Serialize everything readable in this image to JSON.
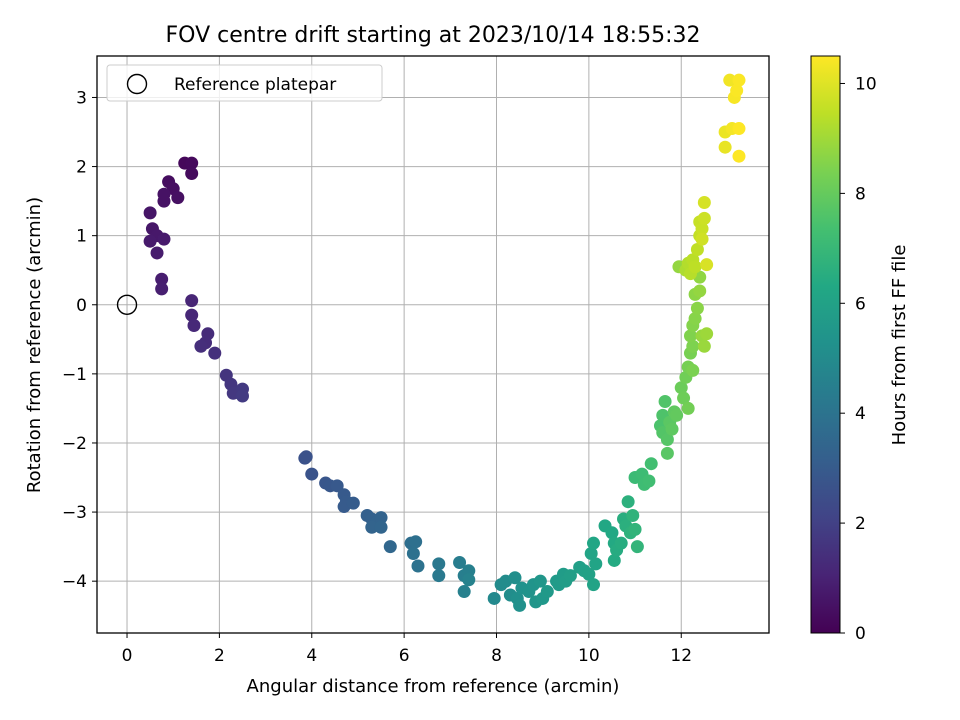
{
  "chart_data": {
    "type": "scatter",
    "title": "FOV centre drift starting at 2023/10/14 18:55:32",
    "xlabel": "Angular distance from reference (arcmin)",
    "ylabel": "Rotation from reference (arcmin)",
    "xlim": [
      -0.65,
      13.9
    ],
    "ylim": [
      -4.75,
      3.6
    ],
    "x_ticks": [
      0,
      2,
      4,
      6,
      8,
      10,
      12
    ],
    "y_ticks": [
      -4,
      -3,
      -2,
      -1,
      0,
      1,
      2,
      3
    ],
    "grid": true,
    "legend": {
      "placement": "top-left",
      "entries": [
        "Reference platepar"
      ]
    },
    "reference_point": {
      "x": 0,
      "y": 0,
      "label": "Reference platepar"
    },
    "colorbar": {
      "label": "Hours from first FF file",
      "colormap": "viridis",
      "range": [
        0,
        10.5
      ],
      "ticks": [
        0,
        2,
        4,
        6,
        8,
        10
      ]
    },
    "points": [
      [
        1.25,
        2.05,
        0.2
      ],
      [
        1.4,
        2.05,
        0.25
      ],
      [
        1.4,
        1.9,
        0.3
      ],
      [
        0.9,
        1.78,
        0.35
      ],
      [
        1.0,
        1.68,
        0.4
      ],
      [
        1.1,
        1.55,
        0.45
      ],
      [
        0.8,
        1.6,
        0.5
      ],
      [
        0.8,
        1.5,
        0.5
      ],
      [
        0.5,
        1.33,
        0.6
      ],
      [
        0.55,
        1.1,
        0.65
      ],
      [
        0.65,
        1.0,
        0.7
      ],
      [
        0.8,
        0.95,
        0.75
      ],
      [
        0.5,
        0.92,
        0.75
      ],
      [
        0.65,
        0.75,
        0.8
      ],
      [
        0.75,
        0.37,
        0.85
      ],
      [
        0.75,
        0.23,
        0.9
      ],
      [
        1.4,
        0.06,
        1.1
      ],
      [
        1.4,
        -0.15,
        1.15
      ],
      [
        1.45,
        -0.3,
        1.2
      ],
      [
        1.75,
        -0.42,
        1.3
      ],
      [
        1.7,
        -0.55,
        1.35
      ],
      [
        1.6,
        -0.6,
        1.4
      ],
      [
        1.9,
        -0.7,
        1.45
      ],
      [
        2.15,
        -1.02,
        1.6
      ],
      [
        2.25,
        -1.15,
        1.65
      ],
      [
        2.3,
        -1.28,
        1.7
      ],
      [
        2.5,
        -1.22,
        1.75
      ],
      [
        2.5,
        -1.32,
        1.8
      ],
      [
        3.85,
        -2.22,
        2.6
      ],
      [
        3.88,
        -2.2,
        2.65
      ],
      [
        4.0,
        -2.45,
        2.7
      ],
      [
        4.3,
        -2.58,
        2.8
      ],
      [
        4.4,
        -2.62,
        2.85
      ],
      [
        4.55,
        -2.62,
        2.9
      ],
      [
        4.7,
        -2.75,
        2.95
      ],
      [
        4.75,
        -2.85,
        3.0
      ],
      [
        4.7,
        -2.92,
        3.0
      ],
      [
        4.9,
        -2.87,
        3.05
      ],
      [
        5.2,
        -3.05,
        3.2
      ],
      [
        5.3,
        -3.1,
        3.25
      ],
      [
        5.4,
        -3.15,
        3.3
      ],
      [
        5.5,
        -3.08,
        3.3
      ],
      [
        5.3,
        -3.22,
        3.35
      ],
      [
        5.5,
        -3.22,
        3.4
      ],
      [
        5.7,
        -3.5,
        3.5
      ],
      [
        6.15,
        -3.45,
        3.8
      ],
      [
        6.25,
        -3.43,
        3.85
      ],
      [
        6.2,
        -3.6,
        3.9
      ],
      [
        6.3,
        -3.78,
        3.95
      ],
      [
        6.75,
        -3.75,
        4.2
      ],
      [
        6.75,
        -3.92,
        4.25
      ],
      [
        7.2,
        -3.73,
        4.4
      ],
      [
        7.3,
        -3.92,
        4.45
      ],
      [
        7.4,
        -3.85,
        4.5
      ],
      [
        7.3,
        -4.15,
        4.55
      ],
      [
        7.4,
        -3.98,
        4.6
      ],
      [
        7.95,
        -4.25,
        4.9
      ],
      [
        8.1,
        -4.05,
        5.0
      ],
      [
        8.2,
        -4.0,
        5.05
      ],
      [
        8.3,
        -4.2,
        5.1
      ],
      [
        8.4,
        -3.95,
        5.15
      ],
      [
        8.45,
        -4.25,
        5.2
      ],
      [
        8.5,
        -4.35,
        5.25
      ],
      [
        8.55,
        -4.1,
        5.3
      ],
      [
        8.7,
        -4.15,
        5.35
      ],
      [
        8.8,
        -4.05,
        5.4
      ],
      [
        8.85,
        -4.3,
        5.45
      ],
      [
        8.95,
        -4.0,
        5.5
      ],
      [
        9.0,
        -4.25,
        5.55
      ],
      [
        9.1,
        -4.15,
        5.6
      ],
      [
        9.3,
        -4.0,
        5.65
      ],
      [
        9.35,
        -4.05,
        5.7
      ],
      [
        9.45,
        -3.9,
        5.75
      ],
      [
        9.5,
        -4.0,
        5.8
      ],
      [
        9.6,
        -3.92,
        5.85
      ],
      [
        9.8,
        -3.8,
        5.9
      ],
      [
        9.9,
        -3.85,
        5.95
      ],
      [
        10.0,
        -3.9,
        6.0
      ],
      [
        10.1,
        -4.05,
        6.05
      ],
      [
        10.15,
        -3.75,
        6.1
      ],
      [
        10.05,
        -3.6,
        6.1
      ],
      [
        10.1,
        -3.45,
        6.2
      ],
      [
        10.35,
        -3.2,
        6.25
      ],
      [
        10.5,
        -3.3,
        6.3
      ],
      [
        10.55,
        -3.45,
        6.35
      ],
      [
        10.55,
        -3.7,
        6.4
      ],
      [
        10.6,
        -3.55,
        6.45
      ],
      [
        10.7,
        -3.45,
        6.5
      ],
      [
        10.75,
        -3.1,
        6.55
      ],
      [
        10.8,
        -3.2,
        6.6
      ],
      [
        10.85,
        -2.85,
        6.65
      ],
      [
        10.9,
        -3.3,
        6.7
      ],
      [
        10.95,
        -3.05,
        6.75
      ],
      [
        11.0,
        -3.25,
        6.8
      ],
      [
        11.05,
        -3.5,
        6.85
      ],
      [
        11.0,
        -2.5,
        7.1
      ],
      [
        11.15,
        -2.45,
        7.15
      ],
      [
        11.2,
        -2.6,
        7.2
      ],
      [
        11.3,
        -2.55,
        7.25
      ],
      [
        11.35,
        -2.3,
        7.3
      ],
      [
        11.55,
        -1.75,
        7.5
      ],
      [
        11.6,
        -1.6,
        7.55
      ],
      [
        11.65,
        -1.4,
        7.6
      ],
      [
        11.6,
        -1.85,
        7.65
      ],
      [
        11.7,
        -1.95,
        7.7
      ],
      [
        11.7,
        -2.15,
        7.75
      ],
      [
        11.75,
        -1.7,
        7.8
      ],
      [
        11.8,
        -1.8,
        7.85
      ],
      [
        11.85,
        -1.55,
        7.9
      ],
      [
        11.9,
        -1.6,
        7.95
      ],
      [
        12.0,
        -1.2,
        8.1
      ],
      [
        12.05,
        -1.35,
        8.15
      ],
      [
        12.1,
        -1.05,
        8.2
      ],
      [
        12.15,
        -1.5,
        8.25
      ],
      [
        12.15,
        -0.9,
        8.3
      ],
      [
        12.2,
        -0.7,
        8.35
      ],
      [
        12.25,
        -0.95,
        8.4
      ],
      [
        12.25,
        -0.6,
        8.45
      ],
      [
        12.2,
        -0.45,
        8.5
      ],
      [
        12.25,
        -0.3,
        8.55
      ],
      [
        12.3,
        -0.2,
        8.6
      ],
      [
        12.35,
        -0.05,
        8.65
      ],
      [
        12.3,
        0.15,
        8.7
      ],
      [
        12.4,
        0.4,
        8.75
      ],
      [
        12.4,
        0.2,
        8.8
      ],
      [
        12.45,
        -0.45,
        8.85
      ],
      [
        12.5,
        -0.6,
        8.9
      ],
      [
        12.55,
        -0.42,
        8.95
      ],
      [
        11.95,
        0.55,
        8.8
      ],
      [
        12.1,
        0.5,
        9.2
      ],
      [
        12.15,
        0.6,
        9.3
      ],
      [
        12.2,
        0.45,
        9.35
      ],
      [
        12.25,
        0.65,
        9.4
      ],
      [
        12.3,
        0.55,
        9.45
      ],
      [
        12.35,
        0.8,
        9.5
      ],
      [
        12.4,
        1.0,
        9.55
      ],
      [
        12.4,
        1.2,
        9.6
      ],
      [
        12.45,
        1.1,
        9.65
      ],
      [
        12.5,
        1.25,
        9.7
      ],
      [
        12.45,
        0.95,
        9.75
      ],
      [
        12.5,
        1.48,
        9.85
      ],
      [
        12.55,
        0.58,
        9.9
      ],
      [
        12.95,
        2.28,
        10.15
      ],
      [
        12.95,
        2.5,
        10.2
      ],
      [
        13.05,
        3.25,
        10.3
      ],
      [
        13.1,
        2.55,
        10.35
      ],
      [
        13.15,
        3.0,
        10.4
      ],
      [
        13.2,
        3.1,
        10.45
      ],
      [
        13.25,
        3.25,
        10.45
      ],
      [
        13.25,
        2.55,
        10.5
      ],
      [
        13.25,
        2.15,
        10.5
      ]
    ]
  }
}
